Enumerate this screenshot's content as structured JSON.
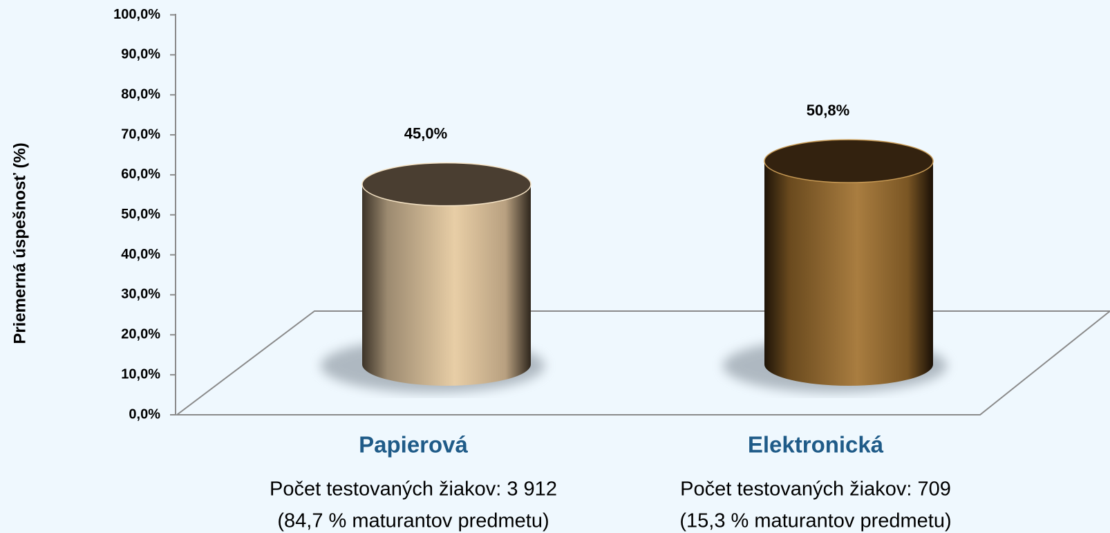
{
  "chart_data": {
    "type": "cylinder_bar",
    "y_label": "Priemerná úspešnosť (%)",
    "categories": [
      "Papierová",
      "Elektronická"
    ],
    "category_notes": [
      [
        "Počet testovaných žiakov: 3 912",
        "(84,7 % maturantov predmetu)"
      ],
      [
        "Počet testovaných žiakov: 709",
        "(15,3 % maturantov predmetu)"
      ]
    ],
    "values": [
      45.0,
      50.8
    ],
    "value_labels": [
      "45,0%",
      "50,8%"
    ],
    "colors": [
      "#e6cba3",
      "#a57a3c"
    ],
    "ylim": [
      0,
      100
    ],
    "yticks": [
      {
        "value": 0,
        "label": "0,0%"
      },
      {
        "value": 10,
        "label": "10,0%"
      },
      {
        "value": 20,
        "label": "20,0%"
      },
      {
        "value": 30,
        "label": "30,0%"
      },
      {
        "value": 40,
        "label": "40,0%"
      },
      {
        "value": 50,
        "label": "50,0%"
      },
      {
        "value": 60,
        "label": "60,0%"
      },
      {
        "value": 70,
        "label": "70,0%"
      },
      {
        "value": 80,
        "label": "80,0%"
      },
      {
        "value": 90,
        "label": "90,0%"
      },
      {
        "value": 100,
        "label": "100,0%"
      }
    ]
  }
}
